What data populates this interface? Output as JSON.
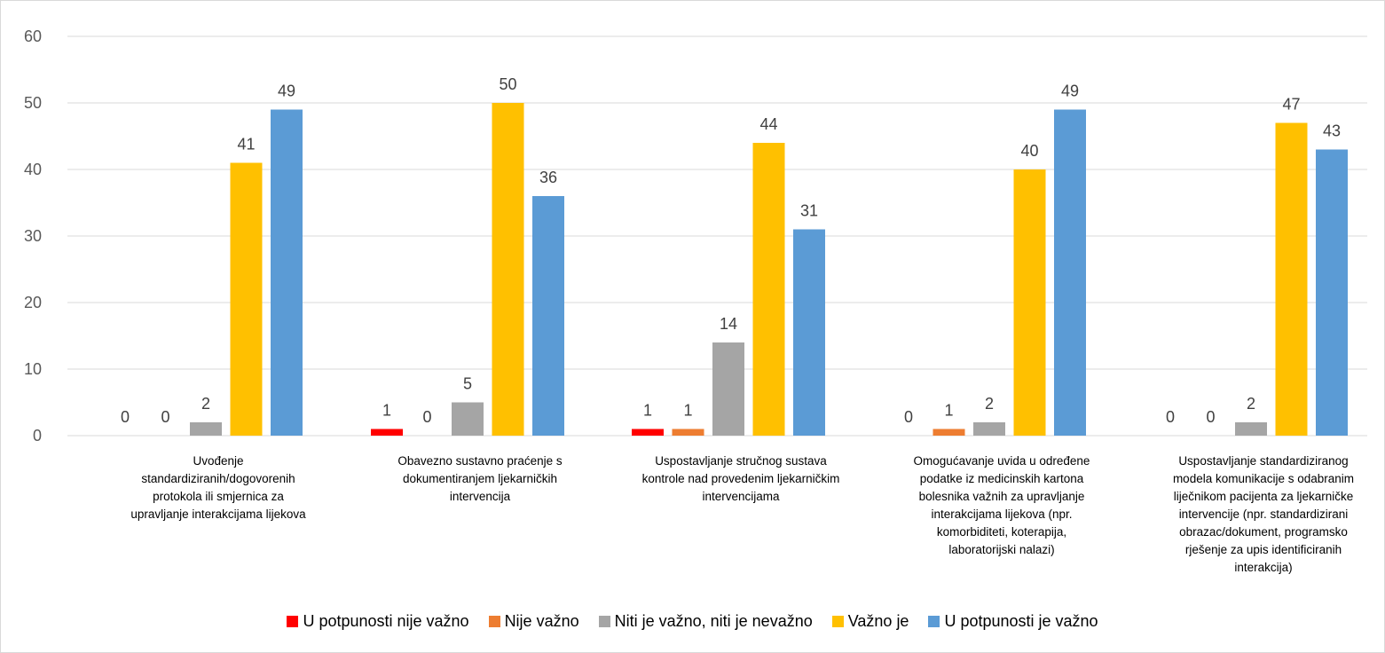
{
  "chart_data": {
    "type": "bar",
    "title": "",
    "xlabel": "",
    "ylabel": "",
    "ylim": [
      0,
      60
    ],
    "y_ticks": [
      0,
      10,
      20,
      30,
      40,
      50,
      60
    ],
    "grid": "horizontal",
    "legend_position": "bottom",
    "categories": [
      [
        "Uvođenje",
        "standardiziranih/dogovorenih",
        "protokola ili smjernica za",
        "upravljanje interakcijama lijekova"
      ],
      [
        "Obavezno sustavno praćenje s",
        "dokumentiranjem ljekarničkih",
        "intervencija"
      ],
      [
        "Uspostavljanje stručnog sustava",
        "kontrole nad provedenim ljekarničkim",
        "intervencijama"
      ],
      [
        "Omogućavanje uvida u određene",
        "podatke iz medicinskih kartona",
        "bolesnika važnih za upravljanje",
        "interakcijama lijekova (npr.",
        "komorbiditeti, koterapija,",
        "laboratorijski nalazi)"
      ],
      [
        "Uspostavljanje standardiziranog",
        "modela komunikacije s odabranim",
        "liječnikom pacijenta za ljekarničke",
        "intervencije (npr. standardizirani",
        "obrazac/dokument,  programsko",
        "rješenje za upis identificiranih",
        "interakcija)"
      ]
    ],
    "series": [
      {
        "name": "U potpunosti nije važno",
        "color": "#ff0000",
        "values": [
          0,
          1,
          1,
          0,
          0
        ]
      },
      {
        "name": "Nije važno",
        "color": "#ed7d31",
        "values": [
          0,
          0,
          1,
          1,
          0
        ]
      },
      {
        "name": "Niti je važno, niti je nevažno",
        "color": "#a5a5a5",
        "values": [
          2,
          5,
          14,
          2,
          2
        ]
      },
      {
        "name": "Važno je",
        "color": "#ffc000",
        "values": [
          41,
          50,
          44,
          40,
          47
        ]
      },
      {
        "name": "U potpunosti je važno",
        "color": "#5b9bd5",
        "values": [
          49,
          36,
          31,
          49,
          43
        ]
      }
    ]
  }
}
